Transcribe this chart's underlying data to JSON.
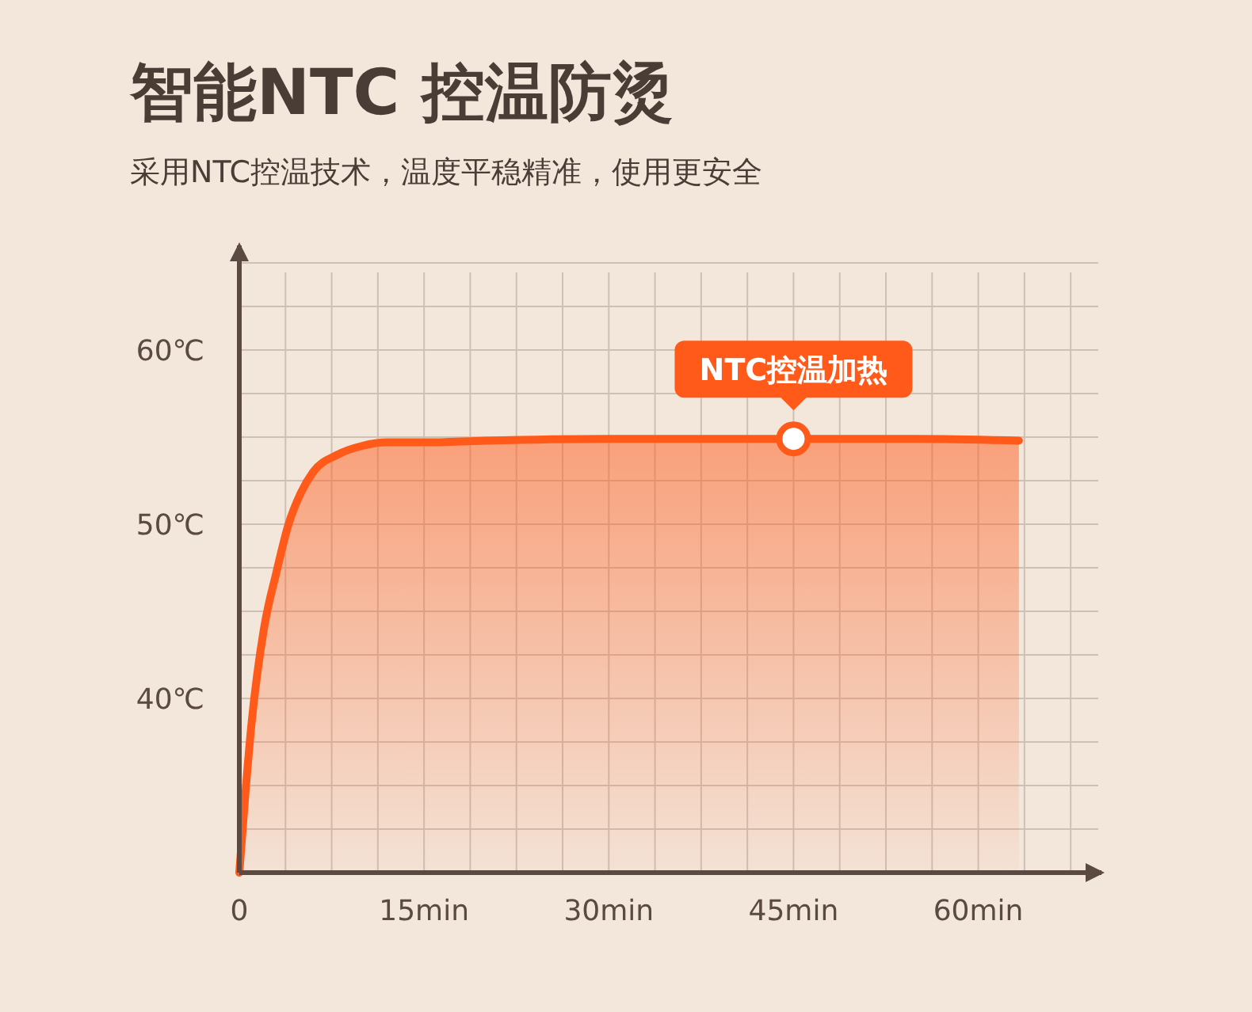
{
  "chart_data": {
    "type": "area",
    "title": "智能NTC 控温防烫",
    "subtitle": "采用NTC控温技术，温度平稳精准，使用更安全",
    "x": [
      0,
      0.5,
      1,
      2,
      3,
      4,
      5,
      6,
      8,
      10,
      12,
      15,
      20,
      30,
      40,
      50,
      55,
      63.3
    ],
    "series": [
      {
        "color": "#ff5a1a",
        "values": [
          30,
          34.6,
          38.6,
          44,
          47.2,
          50,
          51.8,
          53,
          54,
          54.5,
          54.7,
          54.7,
          54.8,
          54.9,
          54.9,
          54.9,
          54.9,
          54.8
        ]
      }
    ],
    "xlim": [
      0,
      70
    ],
    "ylim": [
      30,
      66
    ],
    "xticks": [
      0,
      {
        "value": 3.75,
        "label": null
      },
      {
        "value": 7.5,
        "label": null
      },
      {
        "value": 11.25,
        "label": null
      },
      {
        "value": 15,
        "label": "15min"
      },
      {
        "value": 18.75,
        "label": null
      },
      {
        "value": 22.5,
        "label": null
      },
      {
        "value": 26.25,
        "label": null
      },
      {
        "value": 30,
        "label": "30min"
      },
      {
        "value": 33.75,
        "label": null
      },
      {
        "value": 37.5,
        "label": null
      },
      {
        "value": 41.25,
        "label": null
      },
      {
        "value": 45,
        "label": "45min"
      },
      {
        "value": 48.75,
        "label": null
      },
      {
        "value": 52.5,
        "label": null
      },
      {
        "value": 56.25,
        "label": null
      },
      {
        "value": 60,
        "label": "60min"
      },
      {
        "value": 63.75,
        "label": null
      },
      {
        "value": 67.5,
        "label": null
      }
    ],
    "yticks": [
      {
        "value": 32.5,
        "label": null
      },
      {
        "value": 35,
        "label": null
      },
      {
        "value": 37.5,
        "label": null
      },
      {
        "value": 40,
        "label": "40℃"
      },
      {
        "value": 42.5,
        "label": null
      },
      {
        "value": 45,
        "label": null
      },
      {
        "value": 47.5,
        "label": null
      },
      {
        "value": 50,
        "label": "50℃"
      },
      {
        "value": 52.5,
        "label": null
      },
      {
        "value": 55,
        "label": null
      },
      {
        "value": 57.5,
        "label": null
      },
      {
        "value": 60,
        "label": "60℃"
      },
      {
        "value": 62.5,
        "label": null
      },
      {
        "value": 65,
        "label": null
      }
    ],
    "grid": true,
    "marker": "none",
    "annotations": [
      {
        "text": "NTC控温加热",
        "x": 45,
        "y": 54.9
      }
    ]
  }
}
